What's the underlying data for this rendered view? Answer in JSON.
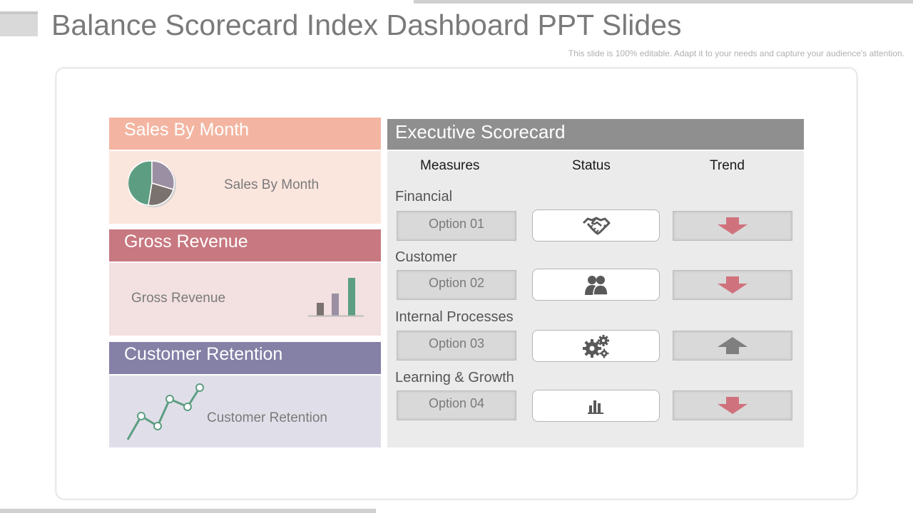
{
  "title": "Balance Scorecard Index Dashboard PPT Slides",
  "subtitle": "This slide is 100% editable. Adapt it to your needs and capture your audience's attention.",
  "colors": {
    "sales": "#f3b5a1",
    "sales_body": "#fbe6de",
    "revenue": "#c87880",
    "revenue_body": "#f3e0e1",
    "retention": "#8480a6",
    "retention_body": "#e0dfe9",
    "green": "#5d9e82",
    "arrow_red": "#d0727d",
    "arrow_gray": "#7f7f7f"
  },
  "cards": {
    "sales": {
      "header": "Sales By Month",
      "label": "Sales By Month",
      "icon": "pie-chart-icon"
    },
    "revenue": {
      "header": "Gross Revenue",
      "label": "Gross Revenue",
      "icon": "bar-chart-icon"
    },
    "retention": {
      "header": "Customer Retention",
      "label": "Customer Retention",
      "icon": "line-chart-icon"
    }
  },
  "scorecard": {
    "header": "Executive Scorecard",
    "columns": [
      "Measures",
      "Status",
      "Trend"
    ],
    "rows": [
      {
        "section": "Financial",
        "option": "Option 01",
        "status_icon": "handshake-icon",
        "trend": "down"
      },
      {
        "section": "Customer",
        "option": "Option 02",
        "status_icon": "users-icon",
        "trend": "down"
      },
      {
        "section": "Internal Processes",
        "option": "Option 03",
        "status_icon": "gears-icon",
        "trend": "up"
      },
      {
        "section": "Learning & Growth",
        "option": "Option 04",
        "status_icon": "bar-chart-icon",
        "trend": "down"
      }
    ]
  }
}
